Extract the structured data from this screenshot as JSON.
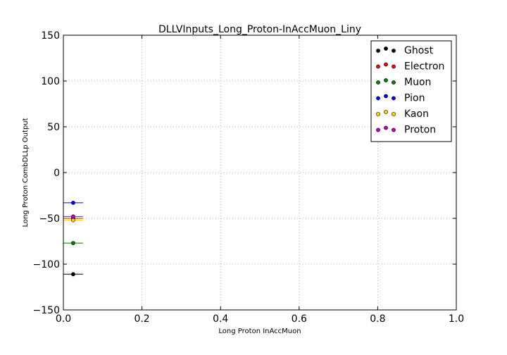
{
  "chart_data": {
    "type": "scatter",
    "title": "DLLVInputs_Long_Proton-InAccMuon_Liny",
    "xlabel": "Long Proton InAccMuon",
    "ylabel": "Long Proton CombDLLp Output",
    "xlim": [
      0.0,
      1.0
    ],
    "ylim": [
      -150,
      150
    ],
    "x_ticks": [
      0.0,
      0.2,
      0.4,
      0.6,
      0.8,
      1.0
    ],
    "x_tick_labels": [
      "0.0",
      "0.2",
      "0.4",
      "0.6",
      "0.8",
      "1.0"
    ],
    "y_ticks": [
      -150,
      -100,
      -50,
      0,
      50,
      100,
      150
    ],
    "y_tick_labels": [
      "−150",
      "−100",
      "−50",
      "0",
      "50",
      "100",
      "150"
    ],
    "grid": true,
    "legend_position": "top-right",
    "series": [
      {
        "name": "Ghost",
        "color": "#000000",
        "x": [
          0.025
        ],
        "y": [
          -111
        ],
        "xerr": [
          0.025
        ]
      },
      {
        "name": "Electron",
        "color": "#ff0000",
        "x": [
          0.025
        ],
        "y": [
          -50
        ],
        "xerr": [
          0.025
        ]
      },
      {
        "name": "Muon",
        "color": "#008000",
        "x": [
          0.025
        ],
        "y": [
          -77
        ],
        "xerr": [
          0.025
        ]
      },
      {
        "name": "Pion",
        "color": "#0000ff",
        "x": [
          0.025
        ],
        "y": [
          -33
        ],
        "xerr": [
          0.025
        ]
      },
      {
        "name": "Kaon",
        "color": "#ffd700",
        "x": [
          0.025
        ],
        "y": [
          -52
        ],
        "xerr": [
          0.025
        ]
      },
      {
        "name": "Proton",
        "color": "#bf00bf",
        "x": [
          0.025
        ],
        "y": [
          -48
        ],
        "xerr": [
          0.025
        ]
      }
    ]
  }
}
